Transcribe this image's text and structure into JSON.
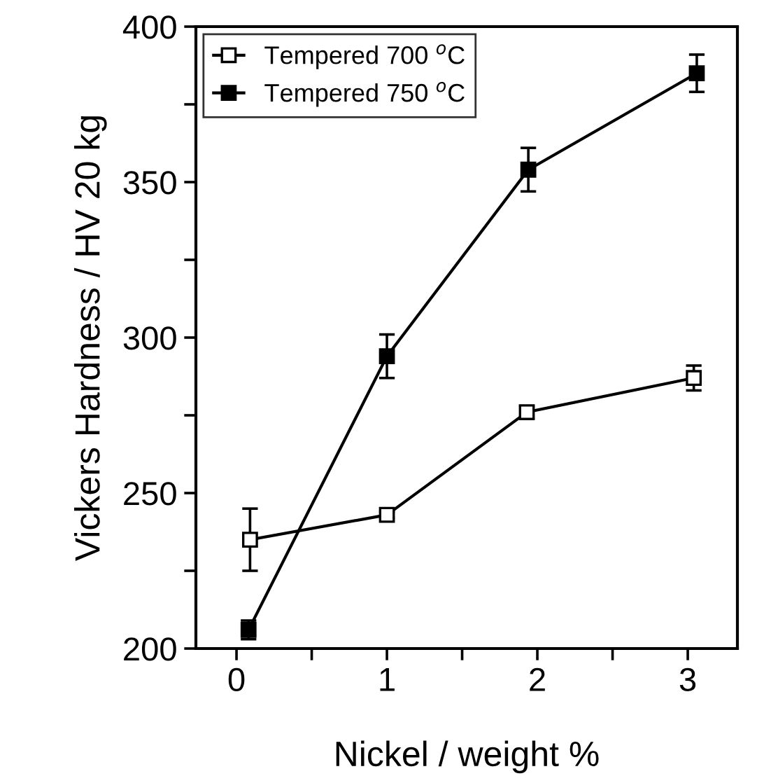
{
  "chart_data": {
    "type": "line",
    "xlabel": "Nickel / weight %",
    "ylabel": "Vickers Hardness / HV 20 kg",
    "xlim": [
      -0.27,
      3.33
    ],
    "xticks": [
      0,
      {
        "value": 0.5,
        "label": null
      },
      1,
      {
        "value": 1.5,
        "label": null
      },
      2,
      {
        "value": 2.5,
        "label": null
      },
      3
    ],
    "ylim": [
      200,
      400
    ],
    "yticks": [
      200,
      {
        "value": 225,
        "label": null
      },
      250,
      {
        "value": 275,
        "label": null
      },
      300,
      {
        "value": 325,
        "label": null
      },
      350,
      {
        "value": 375,
        "label": null
      },
      400
    ],
    "grid": false,
    "legend": "top left",
    "marker": "square",
    "line_style": "solid",
    "series": [
      {
        "name": "Tempered 700 $^{o}$C",
        "color": "#ffffff",
        "x": [
          0.09,
          1.0,
          1.93,
          3.04
        ],
        "values": [
          235,
          243,
          276,
          287
        ],
        "errors": [
          10,
          1,
          2,
          4
        ]
      },
      {
        "name": "Tempered 750 $^{o}$C",
        "color": "#000000",
        "x": [
          0.08,
          1.0,
          1.94,
          3.06
        ],
        "values": [
          206,
          294,
          354,
          385
        ],
        "errors": [
          3,
          7,
          7,
          6
        ]
      }
    ]
  }
}
